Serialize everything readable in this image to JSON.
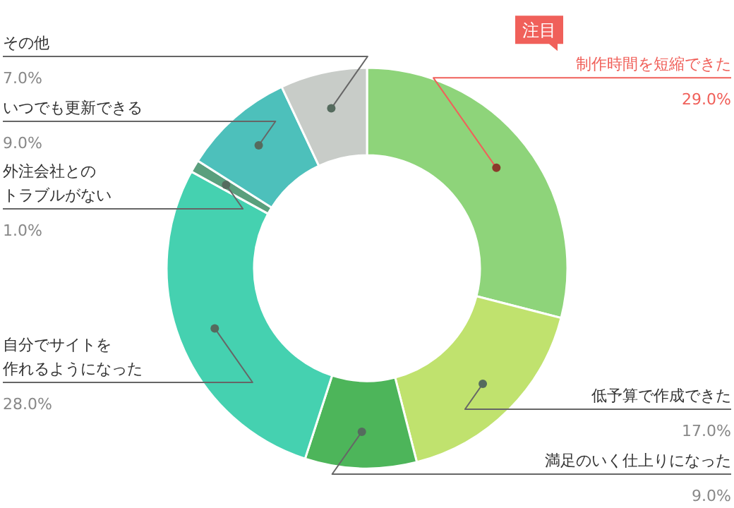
{
  "chart_data": {
    "type": "donut",
    "categories": [
      "制作時間を短縮できた",
      "低予算で作成できた",
      "満足のいく仕上りになった",
      "自分でサイトを作れるようになった",
      "外注会社とのトラブルがない",
      "いつでも更新できる",
      "その他"
    ],
    "values": [
      29,
      17,
      9,
      28,
      1,
      9,
      7
    ],
    "value_labels": [
      "29.0%",
      "17.0%",
      "9.0%",
      "28.0%",
      "1.0%",
      "9.0%",
      "7.0%"
    ],
    "colors": [
      "#8ed47a",
      "#c0e26e",
      "#4db55a",
      "#45d1b0",
      "#5a9f7d",
      "#4dc0bb",
      "#c8ccc8"
    ],
    "annotations": [
      {
        "text": "注目",
        "x": "制作時間を短縮できた"
      }
    ],
    "legend": false
  }
}
